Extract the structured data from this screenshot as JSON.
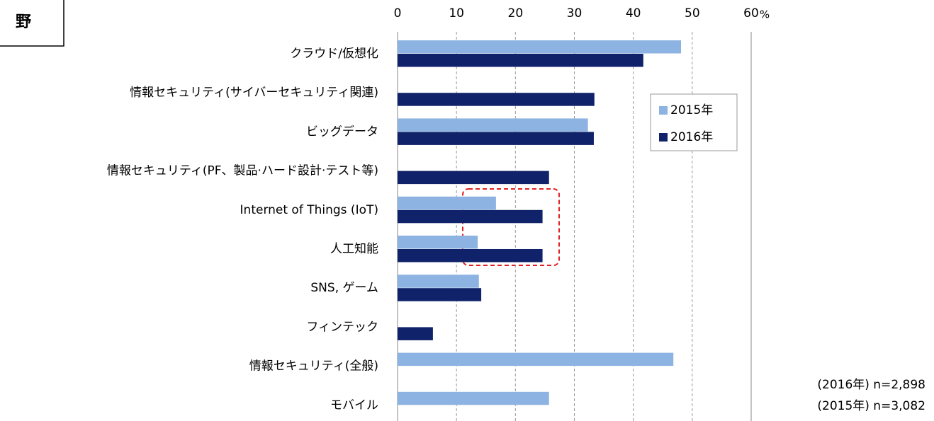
{
  "header": {
    "title": "野"
  },
  "chart_data": {
    "type": "barh",
    "categories": [
      "クラウド/仮想化",
      "情報セキュリティ(サイバーセキュリティ関連)",
      "ビッグデータ",
      "情報セキュリティ(PF、製品·ハード設計·テスト等)",
      "Internet of Things (IoT)",
      "人工知能",
      "SNS, ゲーム",
      "フィンテック",
      "情報セキュリティ(全般)",
      "モバイル"
    ],
    "series": [
      {
        "name": "2015年",
        "color": "#8db3e2",
        "values": [
          48.1,
          null,
          32.3,
          null,
          16.7,
          13.6,
          13.8,
          null,
          46.8,
          25.7
        ]
      },
      {
        "name": "2016年",
        "color": "#10226a",
        "values": [
          41.7,
          33.4,
          33.3,
          25.7,
          24.6,
          24.6,
          14.2,
          6.0,
          null,
          null
        ]
      }
    ],
    "xlim": [
      0,
      60
    ],
    "xticks": [
      0,
      10,
      20,
      30,
      40,
      50,
      60
    ],
    "x_unit": "%",
    "grid": true,
    "notes": [
      "(2016年) n=2,898",
      "(2015年) n=3,082"
    ]
  }
}
